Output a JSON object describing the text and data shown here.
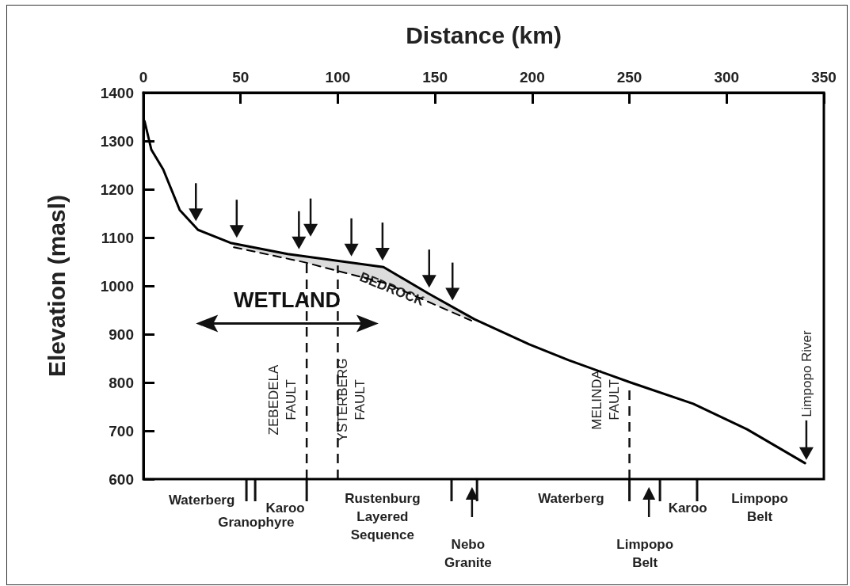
{
  "chart_data": {
    "type": "line",
    "xlabel": "Distance (km)",
    "ylabel": "Elevation (masl)",
    "xlim": [
      0,
      350
    ],
    "xticks": [
      0,
      50,
      100,
      150,
      200,
      250,
      300,
      350
    ],
    "ylim": [
      600,
      1400
    ],
    "yticks": [
      600,
      700,
      800,
      900,
      1000,
      1100,
      1200,
      1300,
      1400
    ],
    "grid": false,
    "marker": "none",
    "series": [
      {
        "color": "#000000",
        "line_style": "solid",
        "x": [
          0.6,
          4.1,
          10.2,
          18.7,
          28.1,
          44.8,
          74.2,
          123.5,
          146.7,
          170.3,
          198.5,
          218.8,
          250.6,
          282.8,
          310.5,
          340.3
        ],
        "values": [
          1341,
          1282,
          1241,
          1157,
          1116,
          1089,
          1066,
          1039,
          984,
          931,
          879,
          846,
          800,
          756,
          703,
          633
        ]
      },
      {
        "color": "#000000",
        "line_style": "dashed",
        "x": [
          46.5,
          82.7,
          125,
          168.7
        ],
        "values": [
          1080,
          1049,
          1005,
          928
        ]
      }
    ],
    "ref_lines": [
      {
        "axis": "x",
        "value": 84,
        "label": "ZEBEDELA FAULT",
        "line_style": "dashed"
      },
      {
        "axis": "x",
        "value": 100,
        "label": "YSTERBERG FAULT",
        "line_style": "dashed"
      },
      {
        "axis": "x",
        "value": 250,
        "label": "MELINDA FAULT",
        "line_style": "dashed"
      }
    ],
    "annotations": [
      "WETLAND",
      "BEDROCK",
      "Limpopo River",
      "Waterberg",
      "Granophyre",
      "Karoo",
      "Rustenburg Layered Sequence",
      "Nebo Granite",
      "Waterberg",
      "Limpopo Belt",
      "Karoo",
      "Limpopo Belt"
    ]
  }
}
